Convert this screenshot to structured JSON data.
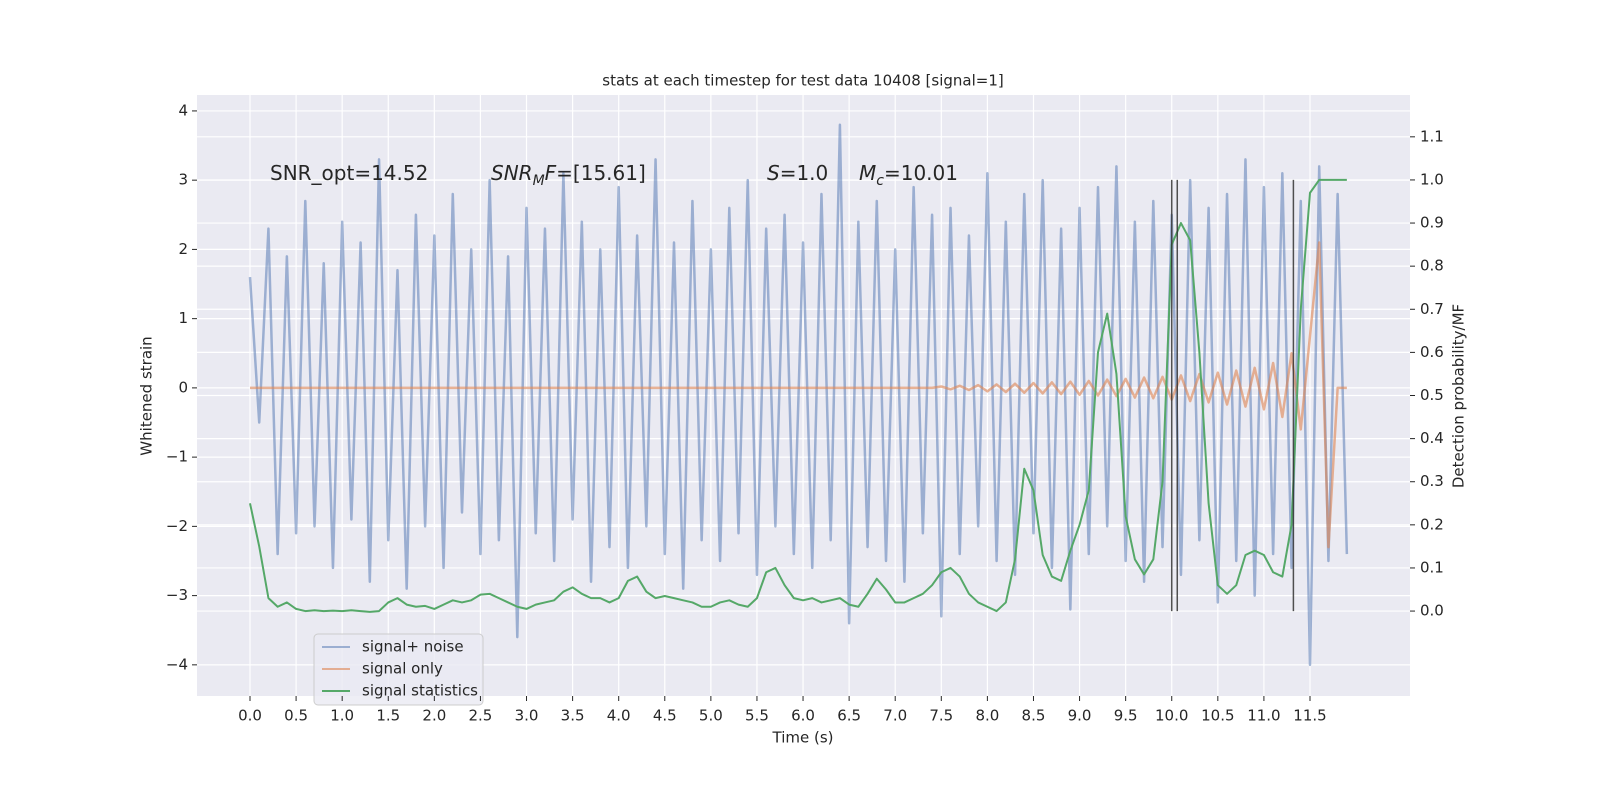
{
  "chart_data": {
    "type": "line",
    "title": "stats at each timestep for test data 10408 [signal=1]",
    "x_label": "Time (s)",
    "y_label": "Whitened strain",
    "y2_label": "Detection probability/MF",
    "x": [
      0.0,
      0.1,
      0.2,
      0.3,
      0.4,
      0.5,
      0.6,
      0.7,
      0.8,
      0.9,
      1.0,
      1.1,
      1.2,
      1.3,
      1.4,
      1.5,
      1.6,
      1.7,
      1.8,
      1.9,
      2.0,
      2.1,
      2.2,
      2.3,
      2.4,
      2.5,
      2.6,
      2.7,
      2.8,
      2.9,
      3.0,
      3.1,
      3.2,
      3.3,
      3.4,
      3.5,
      3.6,
      3.7,
      3.8,
      3.9,
      4.0,
      4.1,
      4.2,
      4.3,
      4.4,
      4.5,
      4.6,
      4.7,
      4.8,
      4.9,
      5.0,
      5.1,
      5.2,
      5.3,
      5.4,
      5.5,
      5.6,
      5.7,
      5.8,
      5.9,
      6.0,
      6.1,
      6.2,
      6.3,
      6.4,
      6.5,
      6.6,
      6.7,
      6.8,
      6.9,
      7.0,
      7.1,
      7.2,
      7.3,
      7.4,
      7.5,
      7.6,
      7.7,
      7.8,
      7.9,
      8.0,
      8.1,
      8.2,
      8.3,
      8.4,
      8.5,
      8.6,
      8.7,
      8.8,
      8.9,
      9.0,
      9.1,
      9.2,
      9.3,
      9.4,
      9.5,
      9.6,
      9.7,
      9.8,
      9.9,
      10.0,
      10.1,
      10.2,
      10.3,
      10.4,
      10.5,
      10.6,
      10.7,
      10.8,
      10.9,
      11.0,
      11.1,
      11.2,
      11.3,
      11.4,
      11.5,
      11.6,
      11.7,
      11.8,
      11.9
    ],
    "series": [
      {
        "name": "signal+ noise",
        "color": "#4c72b0",
        "opacity": 0.5,
        "values": [
          1.6,
          -0.5,
          2.3,
          -2.4,
          1.9,
          -2.1,
          2.7,
          -2.0,
          1.8,
          -2.6,
          2.4,
          -1.9,
          2.1,
          -2.8,
          3.3,
          -2.2,
          1.7,
          -2.9,
          2.5,
          -2.0,
          2.2,
          -2.6,
          2.8,
          -1.8,
          2.0,
          -2.4,
          3.0,
          -2.2,
          1.9,
          -3.6,
          2.6,
          -2.1,
          2.3,
          -2.5,
          3.1,
          -1.9,
          2.4,
          -2.8,
          2.0,
          -2.3,
          2.9,
          -2.6,
          2.2,
          -2.0,
          3.3,
          -2.4,
          2.1,
          -2.9,
          2.7,
          -2.2,
          2.0,
          -2.5,
          2.6,
          -2.1,
          3.0,
          -2.7,
          2.3,
          -2.0,
          2.5,
          -2.4,
          2.1,
          -2.6,
          2.8,
          -2.2,
          3.8,
          -3.4,
          2.4,
          -2.3,
          2.7,
          -2.5,
          2.0,
          -2.8,
          2.9,
          -2.1,
          2.5,
          -3.3,
          2.6,
          -2.4,
          2.2,
          -2.0,
          3.1,
          -2.5,
          2.4,
          -2.7,
          2.8,
          -2.1,
          3.0,
          -2.6,
          2.3,
          -3.2,
          2.6,
          -2.4,
          2.9,
          -2.0,
          3.2,
          -2.5,
          2.4,
          -2.8,
          2.7,
          -2.3,
          2.5,
          -2.7,
          3.0,
          -2.2,
          2.6,
          -3.1,
          2.8,
          -2.5,
          3.3,
          -3.0,
          2.9,
          -2.4,
          3.1,
          -2.6,
          2.7,
          -4.0,
          3.2,
          -2.5,
          2.8,
          -2.4
        ]
      },
      {
        "name": "signal only",
        "color": "#dd8452",
        "opacity": 0.6,
        "values": [
          0,
          0,
          0,
          0,
          0,
          0,
          0,
          0,
          0,
          0,
          0,
          0,
          0,
          0,
          0,
          0,
          0,
          0,
          0,
          0,
          0,
          0,
          0,
          0,
          0,
          0,
          0,
          0,
          0,
          0,
          0,
          0,
          0,
          0,
          0,
          0,
          0,
          0,
          0,
          0,
          0,
          0,
          0,
          0,
          0,
          0,
          0,
          0,
          0,
          0,
          0,
          0,
          0,
          0,
          0,
          0,
          0,
          0,
          0,
          0,
          0,
          0,
          0,
          0,
          0,
          0,
          0,
          0,
          0,
          0,
          0,
          0,
          0,
          0,
          0,
          0.02,
          -0.02,
          0.03,
          -0.03,
          0.04,
          -0.05,
          0.05,
          -0.06,
          0.06,
          -0.07,
          0.07,
          -0.08,
          0.08,
          -0.09,
          0.09,
          -0.1,
          0.1,
          -0.11,
          0.12,
          -0.12,
          0.13,
          -0.14,
          0.15,
          -0.15,
          0.16,
          -0.17,
          0.18,
          -0.19,
          0.2,
          -0.21,
          0.22,
          -0.24,
          0.25,
          -0.27,
          0.29,
          -0.31,
          0.36,
          -0.42,
          0.5,
          -0.6,
          0.75,
          2.1,
          -2.3,
          0.0,
          0.0
        ]
      },
      {
        "name": "signal statistics",
        "color": "#55a868",
        "opacity": 1,
        "axis": "y2",
        "values": [
          0.25,
          0.15,
          0.03,
          0.01,
          0.02,
          0.005,
          0.0,
          0.002,
          0.0,
          0.001,
          0.0,
          0.002,
          0.0,
          -0.002,
          0.0,
          0.02,
          0.03,
          0.015,
          0.01,
          0.012,
          0.005,
          0.015,
          0.025,
          0.02,
          0.025,
          0.038,
          0.04,
          0.03,
          0.02,
          0.01,
          0.005,
          0.015,
          0.02,
          0.025,
          0.045,
          0.055,
          0.04,
          0.03,
          0.03,
          0.02,
          0.03,
          0.07,
          0.08,
          0.045,
          0.03,
          0.035,
          0.03,
          0.025,
          0.02,
          0.01,
          0.01,
          0.02,
          0.025,
          0.015,
          0.01,
          0.03,
          0.09,
          0.1,
          0.06,
          0.03,
          0.025,
          0.03,
          0.02,
          0.025,
          0.03,
          0.015,
          0.01,
          0.04,
          0.075,
          0.05,
          0.02,
          0.02,
          0.03,
          0.04,
          0.06,
          0.09,
          0.1,
          0.08,
          0.04,
          0.02,
          0.01,
          0.0,
          0.02,
          0.12,
          0.33,
          0.28,
          0.13,
          0.08,
          0.07,
          0.14,
          0.2,
          0.28,
          0.6,
          0.69,
          0.55,
          0.22,
          0.12,
          0.085,
          0.12,
          0.3,
          0.85,
          0.9,
          0.86,
          0.6,
          0.25,
          0.06,
          0.04,
          0.06,
          0.13,
          0.14,
          0.13,
          0.09,
          0.08,
          0.2,
          0.7,
          0.97,
          1.0,
          1.0,
          1.0,
          1.0
        ]
      }
    ],
    "vlines": {
      "color": "#333333",
      "x": [
        10.0,
        10.06,
        11.32
      ],
      "y2": [
        0,
        1
      ]
    },
    "annotations": [
      [
        {
          "text": "SNR_opt=14.52"
        }
      ],
      [
        {
          "text": "SNR",
          "italic": true
        },
        {
          "text": "M",
          "italic": true,
          "sub": true
        },
        {
          "text": "F",
          "italic": true
        },
        {
          "text": "=[15.61]"
        }
      ],
      [
        {
          "text": "S",
          "italic": true
        },
        {
          "text": "=1.0"
        }
      ],
      [
        {
          "text": "M",
          "italic": true
        },
        {
          "text": "c",
          "italic": true,
          "sub": true
        },
        {
          "text": "=10.01"
        }
      ]
    ],
    "xlim": [
      -0.575,
      12.585
    ],
    "xticks": [
      {
        "value": 0,
        "label": "0.0"
      },
      0.5,
      {
        "value": 1,
        "label": "1.0"
      },
      1.5,
      {
        "value": 2,
        "label": "2.0"
      },
      2.5,
      {
        "value": 3,
        "label": "3.0"
      },
      3.5,
      {
        "value": 4,
        "label": "4.0"
      },
      4.5,
      {
        "value": 5,
        "label": "5.0"
      },
      5.5,
      {
        "value": 6,
        "label": "6.0"
      },
      6.5,
      {
        "value": 7,
        "label": "7.0"
      },
      7.5,
      {
        "value": 8,
        "label": "8.0"
      },
      8.5,
      {
        "value": 9,
        "label": "9.0"
      },
      9.5,
      {
        "value": 10,
        "label": "10.0"
      },
      10.5,
      {
        "value": 11,
        "label": "11.0"
      },
      11.5
    ],
    "ylim": [
      -4.45,
      4.23
    ],
    "yticks": [
      {
        "value": -4,
        "label": "−4"
      },
      {
        "value": -3,
        "label": "−3"
      },
      {
        "value": -2,
        "label": "−2"
      },
      {
        "value": -1,
        "label": "−1"
      },
      0,
      1,
      2,
      3,
      4
    ],
    "y2lim": [
      -0.197,
      1.197
    ],
    "y2ticks": [
      {
        "value": 0,
        "label": "0.0"
      },
      0.1,
      0.2,
      0.3,
      0.4,
      0.5,
      0.6,
      0.7,
      0.8,
      0.9,
      {
        "value": 1,
        "label": "1.0"
      },
      1.1
    ],
    "grid": true,
    "legend": "lower left"
  }
}
